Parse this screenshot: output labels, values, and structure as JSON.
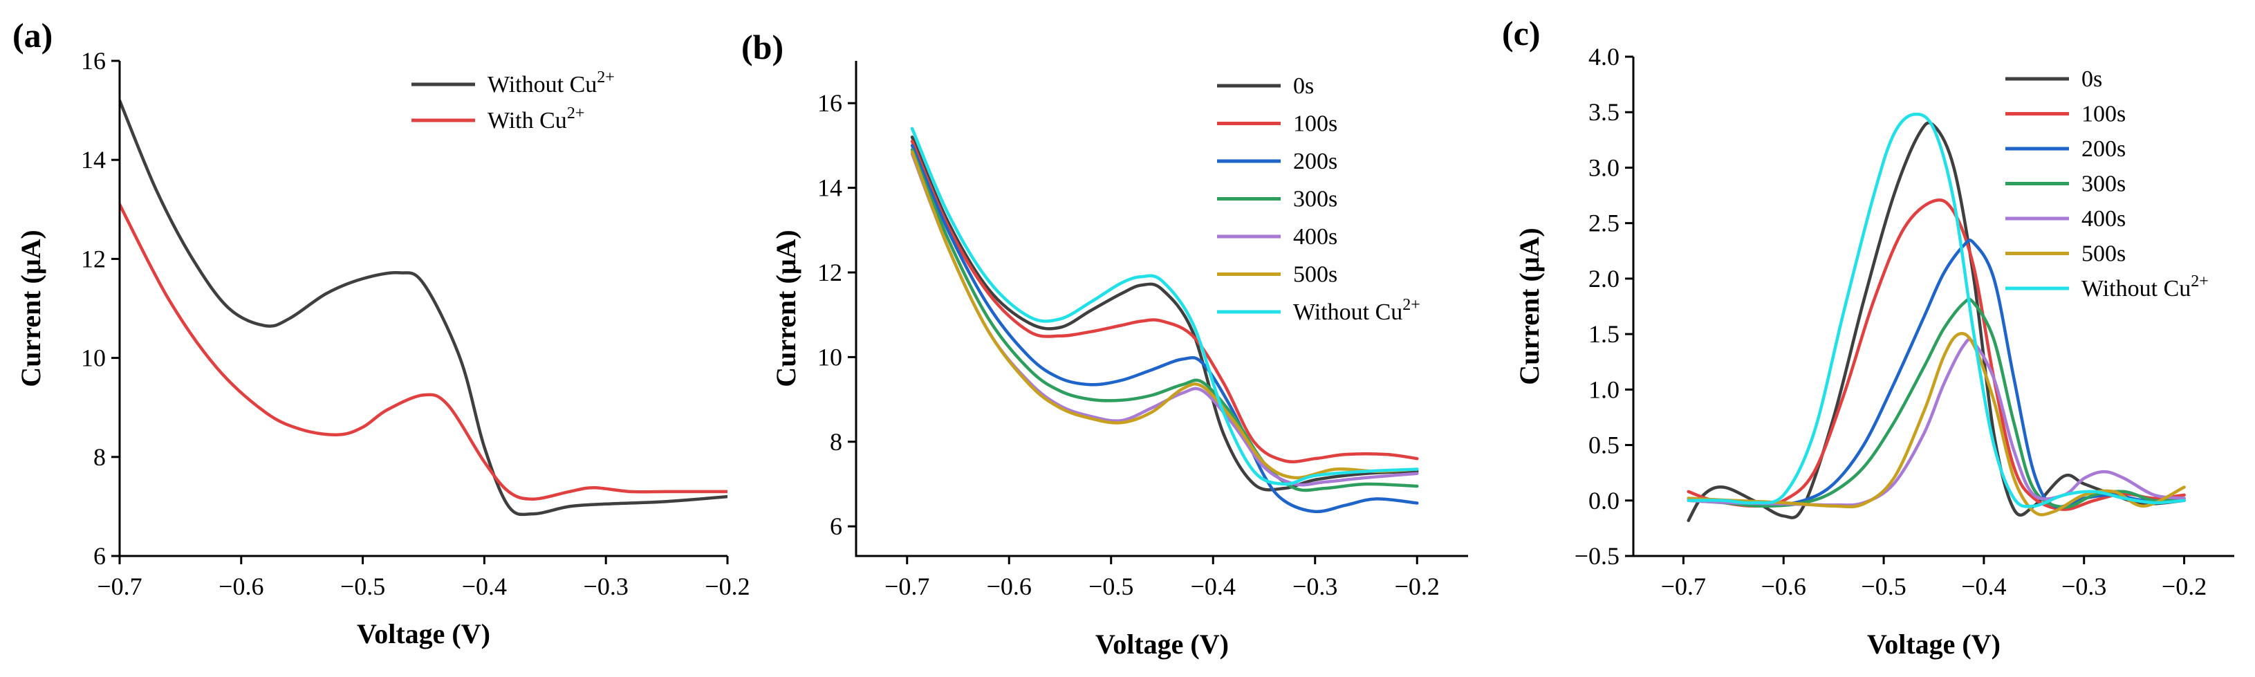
{
  "chart_data": [
    {
      "panel": "(a)",
      "type": "line",
      "xlabel": "Voltage (V)",
      "ylabel": "Current (μA)",
      "xlim": [
        -0.7,
        -0.2
      ],
      "ylim": [
        6,
        16
      ],
      "xticks": [
        -0.7,
        -0.6,
        -0.5,
        -0.4,
        -0.3,
        -0.2
      ],
      "yticks": [
        6,
        8,
        10,
        12,
        14,
        16
      ],
      "xtick_labels": [
        "−0.7",
        "−0.6",
        "−0.5",
        "−0.4",
        "−0.3",
        "−0.2"
      ],
      "ytick_labels": [
        "6",
        "8",
        "10",
        "12",
        "14",
        "16"
      ],
      "legend_position": "top-right",
      "series": [
        {
          "name": "Without Cu",
          "sup": "2+",
          "color": "#3f3f3f",
          "x": [
            -0.7,
            -0.67,
            -0.64,
            -0.61,
            -0.58,
            -0.56,
            -0.53,
            -0.5,
            -0.47,
            -0.45,
            -0.42,
            -0.4,
            -0.38,
            -0.36,
            -0.33,
            -0.3,
            -0.25,
            -0.2
          ],
          "y": [
            15.2,
            13.4,
            12.0,
            11.0,
            10.65,
            10.8,
            11.3,
            11.6,
            11.72,
            11.5,
            10.0,
            8.2,
            7.0,
            6.85,
            7.0,
            7.05,
            7.1,
            7.2
          ]
        },
        {
          "name": "With Cu",
          "sup": "2+",
          "color": "#e04040",
          "x": [
            -0.7,
            -0.66,
            -0.62,
            -0.58,
            -0.55,
            -0.52,
            -0.5,
            -0.48,
            -0.45,
            -0.43,
            -0.4,
            -0.38,
            -0.36,
            -0.33,
            -0.31,
            -0.28,
            -0.25,
            -0.2
          ],
          "y": [
            13.1,
            11.2,
            9.8,
            8.9,
            8.55,
            8.45,
            8.6,
            8.95,
            9.25,
            9.05,
            7.9,
            7.3,
            7.15,
            7.3,
            7.38,
            7.3,
            7.3,
            7.3
          ]
        }
      ]
    },
    {
      "panel": "(b)",
      "type": "line",
      "xlabel": "Voltage (V)",
      "ylabel": "Current (μA)",
      "xlim": [
        -0.75,
        -0.15
      ],
      "ylim": [
        5.3,
        17
      ],
      "xticks": [
        -0.7,
        -0.6,
        -0.5,
        -0.4,
        -0.3,
        -0.2
      ],
      "yticks": [
        6,
        8,
        10,
        12,
        14,
        16
      ],
      "xtick_labels": [
        "−0.7",
        "−0.6",
        "−0.5",
        "−0.4",
        "−0.3",
        "−0.2"
      ],
      "ytick_labels": [
        "6",
        "8",
        "10",
        "12",
        "14",
        "16"
      ],
      "legend_position": "top-right",
      "series": [
        {
          "name": "0s",
          "color": "#3f3f3f",
          "x": [
            -0.695,
            -0.66,
            -0.62,
            -0.58,
            -0.55,
            -0.52,
            -0.49,
            -0.47,
            -0.45,
            -0.42,
            -0.39,
            -0.36,
            -0.33,
            -0.3,
            -0.25,
            -0.2
          ],
          "y": [
            15.2,
            13.2,
            11.6,
            10.8,
            10.7,
            11.1,
            11.5,
            11.7,
            11.6,
            10.6,
            8.2,
            7.0,
            6.9,
            7.1,
            7.25,
            7.3
          ]
        },
        {
          "name": "100s",
          "color": "#e04040",
          "x": [
            -0.695,
            -0.66,
            -0.62,
            -0.58,
            -0.55,
            -0.52,
            -0.49,
            -0.47,
            -0.45,
            -0.42,
            -0.39,
            -0.36,
            -0.33,
            -0.3,
            -0.27,
            -0.23,
            -0.2
          ],
          "y": [
            15.1,
            13.1,
            11.5,
            10.6,
            10.5,
            10.6,
            10.75,
            10.85,
            10.85,
            10.5,
            9.4,
            8.0,
            7.55,
            7.6,
            7.7,
            7.7,
            7.6
          ]
        },
        {
          "name": "200s",
          "color": "#1f64c8",
          "x": [
            -0.695,
            -0.66,
            -0.62,
            -0.58,
            -0.55,
            -0.52,
            -0.49,
            -0.46,
            -0.43,
            -0.41,
            -0.38,
            -0.35,
            -0.33,
            -0.3,
            -0.27,
            -0.24,
            -0.2
          ],
          "y": [
            15.0,
            13.0,
            11.2,
            10.0,
            9.5,
            9.35,
            9.45,
            9.7,
            9.95,
            9.85,
            8.7,
            7.2,
            6.6,
            6.35,
            6.5,
            6.65,
            6.55
          ]
        },
        {
          "name": "300s",
          "color": "#2e9e5e",
          "x": [
            -0.695,
            -0.66,
            -0.62,
            -0.58,
            -0.55,
            -0.52,
            -0.49,
            -0.46,
            -0.43,
            -0.41,
            -0.38,
            -0.35,
            -0.32,
            -0.29,
            -0.25,
            -0.2
          ],
          "y": [
            14.9,
            12.8,
            10.9,
            9.7,
            9.2,
            9.0,
            8.98,
            9.1,
            9.35,
            9.4,
            8.6,
            7.5,
            6.9,
            6.9,
            7.0,
            6.95
          ]
        },
        {
          "name": "400s",
          "color": "#a87ad6",
          "x": [
            -0.695,
            -0.66,
            -0.62,
            -0.58,
            -0.55,
            -0.52,
            -0.49,
            -0.46,
            -0.43,
            -0.41,
            -0.38,
            -0.35,
            -0.32,
            -0.29,
            -0.25,
            -0.2
          ],
          "y": [
            14.8,
            12.6,
            10.6,
            9.4,
            8.85,
            8.6,
            8.5,
            8.8,
            9.15,
            9.2,
            8.4,
            7.4,
            7.0,
            7.05,
            7.15,
            7.25
          ]
        },
        {
          "name": "500s",
          "color": "#c8a020",
          "x": [
            -0.695,
            -0.66,
            -0.62,
            -0.58,
            -0.55,
            -0.52,
            -0.49,
            -0.46,
            -0.43,
            -0.41,
            -0.38,
            -0.35,
            -0.32,
            -0.28,
            -0.24,
            -0.2
          ],
          "y": [
            14.85,
            12.6,
            10.6,
            9.35,
            8.8,
            8.55,
            8.45,
            8.7,
            9.25,
            9.3,
            8.5,
            7.5,
            7.15,
            7.35,
            7.3,
            7.35
          ]
        },
        {
          "name": "Without Cu",
          "sup": "2+",
          "color": "#22e0e8",
          "x": [
            -0.695,
            -0.66,
            -0.62,
            -0.58,
            -0.55,
            -0.52,
            -0.49,
            -0.47,
            -0.45,
            -0.42,
            -0.39,
            -0.36,
            -0.33,
            -0.3,
            -0.25,
            -0.2
          ],
          "y": [
            15.4,
            13.4,
            11.8,
            10.95,
            10.9,
            11.3,
            11.75,
            11.9,
            11.8,
            10.8,
            8.7,
            7.3,
            7.0,
            7.2,
            7.3,
            7.35
          ]
        }
      ]
    },
    {
      "panel": "(c)",
      "type": "line",
      "xlabel": "Voltage (V)",
      "ylabel": "Current (μA)",
      "xlim": [
        -0.75,
        -0.15
      ],
      "ylim": [
        -0.5,
        4.0
      ],
      "xticks": [
        -0.7,
        -0.6,
        -0.5,
        -0.4,
        -0.3,
        -0.2
      ],
      "yticks": [
        -0.5,
        0.0,
        0.5,
        1.0,
        1.5,
        2.0,
        2.5,
        3.0,
        3.5,
        4.0
      ],
      "xtick_labels": [
        "−0.7",
        "−0.6",
        "−0.5",
        "−0.4",
        "−0.3",
        "−0.2"
      ],
      "ytick_labels": [
        "−0.5",
        "0.0",
        "0.5",
        "1.0",
        "1.5",
        "2.0",
        "2.5",
        "3.0",
        "3.5",
        "4.0"
      ],
      "legend_position": "top-right",
      "series": [
        {
          "name": "0s",
          "color": "#3f3f3f",
          "x": [
            -0.695,
            -0.68,
            -0.66,
            -0.63,
            -0.6,
            -0.58,
            -0.55,
            -0.52,
            -0.49,
            -0.465,
            -0.45,
            -0.43,
            -0.41,
            -0.39,
            -0.37,
            -0.35,
            -0.32,
            -0.3,
            -0.27,
            -0.24,
            -0.2
          ],
          "y": [
            -0.18,
            0.05,
            0.12,
            0.0,
            -0.14,
            -0.05,
            0.75,
            1.8,
            2.75,
            3.3,
            3.38,
            3.0,
            2.0,
            0.6,
            -0.08,
            -0.05,
            0.22,
            0.15,
            0.05,
            -0.03,
            0.0
          ]
        },
        {
          "name": "100s",
          "color": "#e04040",
          "x": [
            -0.695,
            -0.67,
            -0.63,
            -0.6,
            -0.57,
            -0.54,
            -0.51,
            -0.48,
            -0.45,
            -0.43,
            -0.41,
            -0.39,
            -0.37,
            -0.35,
            -0.32,
            -0.29,
            -0.26,
            -0.23,
            -0.2
          ],
          "y": [
            0.08,
            0.0,
            -0.05,
            0.0,
            0.25,
            0.95,
            1.8,
            2.45,
            2.7,
            2.6,
            2.1,
            1.1,
            0.3,
            0.02,
            -0.08,
            0.0,
            0.06,
            0.02,
            0.05
          ]
        },
        {
          "name": "200s",
          "color": "#1f64c8",
          "x": [
            -0.695,
            -0.66,
            -0.62,
            -0.58,
            -0.55,
            -0.52,
            -0.49,
            -0.46,
            -0.44,
            -0.42,
            -0.41,
            -0.39,
            -0.37,
            -0.35,
            -0.33,
            -0.3,
            -0.27,
            -0.24,
            -0.2
          ],
          "y": [
            0.02,
            0.0,
            -0.05,
            0.0,
            0.15,
            0.5,
            1.05,
            1.65,
            2.05,
            2.3,
            2.32,
            2.0,
            1.1,
            0.25,
            -0.05,
            0.02,
            0.05,
            0.0,
            0.0
          ]
        },
        {
          "name": "300s",
          "color": "#2e9e5e",
          "x": [
            -0.695,
            -0.66,
            -0.62,
            -0.58,
            -0.55,
            -0.52,
            -0.49,
            -0.46,
            -0.44,
            -0.42,
            -0.41,
            -0.39,
            -0.37,
            -0.35,
            -0.32,
            -0.29,
            -0.26,
            -0.23,
            -0.2
          ],
          "y": [
            0.0,
            -0.02,
            -0.05,
            -0.02,
            0.08,
            0.3,
            0.7,
            1.2,
            1.55,
            1.78,
            1.78,
            1.45,
            0.7,
            0.1,
            -0.06,
            0.05,
            0.08,
            0.0,
            0.02
          ]
        },
        {
          "name": "400s",
          "color": "#a87ad6",
          "x": [
            -0.695,
            -0.65,
            -0.6,
            -0.55,
            -0.52,
            -0.49,
            -0.46,
            -0.44,
            -0.42,
            -0.41,
            -0.39,
            -0.37,
            -0.35,
            -0.32,
            -0.3,
            -0.28,
            -0.26,
            -0.23,
            -0.2
          ],
          "y": [
            0.0,
            -0.02,
            -0.03,
            -0.04,
            -0.02,
            0.15,
            0.6,
            1.05,
            1.4,
            1.42,
            1.1,
            0.45,
            0.05,
            0.05,
            0.2,
            0.26,
            0.2,
            0.05,
            0.02
          ]
        },
        {
          "name": "500s",
          "color": "#c8a020",
          "x": [
            -0.695,
            -0.65,
            -0.6,
            -0.55,
            -0.52,
            -0.49,
            -0.46,
            -0.44,
            -0.425,
            -0.41,
            -0.39,
            -0.37,
            -0.35,
            -0.33,
            -0.3,
            -0.27,
            -0.24,
            -0.2
          ],
          "y": [
            0.02,
            0.0,
            -0.02,
            -0.05,
            -0.03,
            0.2,
            0.8,
            1.3,
            1.5,
            1.4,
            0.9,
            0.2,
            -0.1,
            -0.1,
            0.05,
            0.08,
            -0.05,
            0.12
          ]
        },
        {
          "name": "Without Cu",
          "sup": "2+",
          "color": "#22e0e8",
          "x": [
            -0.695,
            -0.66,
            -0.63,
            -0.6,
            -0.57,
            -0.54,
            -0.51,
            -0.49,
            -0.47,
            -0.45,
            -0.43,
            -0.41,
            -0.39,
            -0.37,
            -0.35,
            -0.32,
            -0.29,
            -0.26,
            -0.23,
            -0.2
          ],
          "y": [
            0.0,
            0.0,
            -0.02,
            0.05,
            0.6,
            1.7,
            2.75,
            3.3,
            3.48,
            3.35,
            2.7,
            1.5,
            0.5,
            0.02,
            -0.05,
            0.05,
            0.08,
            0.02,
            -0.02,
            0.0
          ]
        }
      ]
    }
  ]
}
